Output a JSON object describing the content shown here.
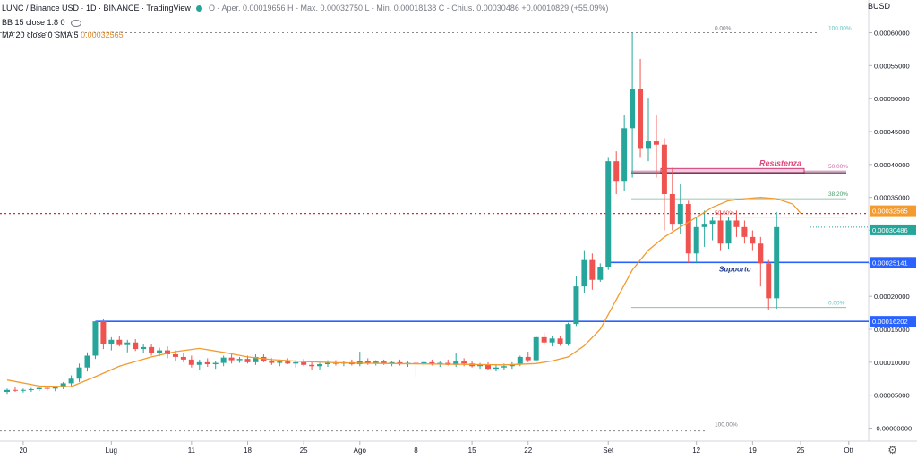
{
  "header": {
    "symbol_line": "LUNC / Binance USD · 1D · BINANCE · TradingView",
    "ohlc_line": "O - Aper. 0.00019656  H - Max. 0.00032750  L - Min. 0.00018138  C - Chius. 0.00030486  +0.00010829 (+55.09%)",
    "bb_line": "BB 15 close 1.8 0",
    "ma_label": "MA 20 close 0 SMA 5",
    "ma_value": "0.00032565"
  },
  "axis_currency": "BUSD",
  "colors": {
    "up": "#26a69a",
    "down": "#ef5350",
    "ma": "#f39b2f",
    "line_blue": "#2962ff",
    "red_dots": "#d32f2f"
  },
  "icons": {
    "settings": "gear-icon",
    "visibility": "eye-icon"
  },
  "chart_data": {
    "type": "candlestick",
    "ylim": [
      -1e-06,
      6.4e-05
    ],
    "y_ticks": [
      "0.00060000",
      "0.00055000",
      "0.00050000",
      "0.00045000",
      "0.00040000",
      "0.00035000",
      "0.00030000",
      "0.00025000",
      "0.00020000",
      "0.00015000",
      "0.00010000",
      "0.00005000",
      "-0.00000000"
    ],
    "y_tick_values": [
      0.0006,
      0.00055,
      0.0005,
      0.00045,
      0.0004,
      0.00035,
      0.0003,
      0.00025,
      0.0002,
      0.00015,
      0.0001,
      5e-05,
      0.0
    ],
    "x_ticks": [
      {
        "label": "20",
        "i": 2
      },
      {
        "label": "Lug",
        "i": 13
      },
      {
        "label": "11",
        "i": 23
      },
      {
        "label": "18",
        "i": 30
      },
      {
        "label": "25",
        "i": 37
      },
      {
        "label": "Ago",
        "i": 44
      },
      {
        "label": "8",
        "i": 51
      },
      {
        "label": "15",
        "i": 58
      },
      {
        "label": "22",
        "i": 65
      },
      {
        "label": "Set",
        "i": 75
      },
      {
        "label": "12",
        "i": 86
      },
      {
        "label": "19",
        "i": 93
      },
      {
        "label": "25",
        "i": 99
      },
      {
        "label": "Ott",
        "i": 105
      }
    ],
    "candles": [
      [
        5.5e-05,
        6e-05,
        5.2e-05,
        5.8e-05
      ],
      [
        5.8e-05,
        6.2e-05,
        5.5e-05,
        5.7e-05
      ],
      [
        5.7e-05,
        6e-05,
        5.4e-05,
        5.8e-05
      ],
      [
        5.8e-05,
        6.1e-05,
        5.5e-05,
        5.9e-05
      ],
      [
        5.9e-05,
        6.3e-05,
        5.6e-05,
        6.1e-05
      ],
      [
        6.1e-05,
        6.4e-05,
        5.7e-05,
        6e-05
      ],
      [
        6e-05,
        6.3e-05,
        5.6e-05,
        6.2e-05
      ],
      [
        6.2e-05,
        7e-05,
        5.9e-05,
        6.8e-05
      ],
      [
        6.8e-05,
        8e-05,
        6.4e-05,
        7.5e-05
      ],
      [
        7.5e-05,
        9.8e-05,
        7e-05,
        9.2e-05
      ],
      [
        9.2e-05,
        0.000115,
        8.6e-05,
        0.00011
      ],
      [
        0.00011,
        0.000162,
        0.000105,
        0.000162
      ],
      [
        0.000162,
        0.000165,
        0.00012,
        0.000128
      ],
      [
        0.000128,
        0.000138,
        0.000118,
        0.000134
      ],
      [
        0.000134,
        0.00014,
        0.000124,
        0.000126
      ],
      [
        0.000126,
        0.000134,
        0.000115,
        0.00013
      ],
      [
        0.00013,
        0.000135,
        0.000117,
        0.00012
      ],
      [
        0.00012,
        0.000128,
        0.000114,
        0.000123
      ],
      [
        0.000123,
        0.000127,
        0.00011,
        0.000114
      ],
      [
        0.000114,
        0.000122,
        0.000109,
        0.000118
      ],
      [
        0.000118,
        0.000124,
        0.000106,
        0.000112
      ],
      [
        0.000112,
        0.000118,
        0.000102,
        0.000108
      ],
      [
        0.000108,
        0.000114,
        0.0001,
        0.000104
      ],
      [
        0.000104,
        0.00011,
        9.2e-05,
        9.6e-05
      ],
      [
        9.6e-05,
        0.000104,
        8.8e-05,
        0.0001
      ],
      [
        0.0001,
        0.000106,
        9.3e-05,
        9.7e-05
      ],
      [
        9.7e-05,
        0.000102,
        9e-05,
        9.9e-05
      ],
      [
        9.9e-05,
        0.00011,
        9.4e-05,
        0.000107
      ],
      [
        0.000107,
        0.000112,
        9.8e-05,
        0.000103
      ],
      [
        0.000103,
        0.000108,
        9.9e-05,
        0.000105
      ],
      [
        0.000105,
        0.00011,
        9.8e-05,
        0.0001
      ],
      [
        0.0001,
        0.000112,
        9.6e-05,
        0.000108
      ],
      [
        0.000108,
        0.000112,
        0.0001,
        0.000102
      ],
      [
        0.000102,
        0.000106,
        9.6e-05,
        9.9e-05
      ],
      [
        9.9e-05,
        0.000104,
        9.4e-05,
        0.000101
      ],
      [
        0.000101,
        0.000106,
        9.7e-05,
        9.8e-05
      ],
      [
        9.8e-05,
        0.000103,
        9.2e-05,
        0.0001
      ],
      [
        0.0001,
        0.000105,
        9.4e-05,
        9.6e-05
      ],
      [
        9.6e-05,
        0.000102,
        8.8e-05,
        9.4e-05
      ],
      [
        9.4e-05,
        9.9e-05,
        8.9e-05,
        9.7e-05
      ],
      [
        9.7e-05,
        0.000103,
        9.3e-05,
        9.9e-05
      ],
      [
        9.9e-05,
        0.000103,
        9.5e-05,
        9.8e-05
      ],
      [
        9.8e-05,
        0.000102,
        9.4e-05,
        0.0001
      ],
      [
        0.0001,
        0.000104,
        9.5e-05,
        9.7e-05
      ],
      [
        9.7e-05,
        0.000116,
        9.4e-05,
        0.000102
      ],
      [
        0.000102,
        0.000106,
        9.6e-05,
        9.9e-05
      ],
      [
        9.9e-05,
        0.000103,
        9.5e-05,
        0.000101
      ],
      [
        0.000101,
        0.000104,
        9.6e-05,
        9.8e-05
      ],
      [
        9.8e-05,
        0.000102,
        9.4e-05,
        0.0001
      ],
      [
        0.0001,
        0.000104,
        9.5e-05,
        9.7e-05
      ],
      [
        9.7e-05,
        0.000101,
        9.3e-05,
        9.9e-05
      ],
      [
        9.9e-05,
        0.000103,
        7.8e-05,
        9.8e-05
      ],
      [
        9.8e-05,
        0.000102,
        9.4e-05,
        0.0001
      ],
      [
        0.0001,
        0.000104,
        9.5e-05,
        9.7e-05
      ],
      [
        9.7e-05,
        0.000101,
        9.3e-05,
        9.9e-05
      ],
      [
        9.9e-05,
        0.000104,
        9.5e-05,
        9.6e-05
      ],
      [
        9.6e-05,
        0.000114,
        9.3e-05,
        0.000101
      ],
      [
        0.000101,
        0.000106,
        9.4e-05,
        9.8e-05
      ],
      [
        9.8e-05,
        0.000102,
        9.2e-05,
        9.4e-05
      ],
      [
        9.4e-05,
        9.9e-05,
        9e-05,
        9.7e-05
      ],
      [
        9.7e-05,
        0.0001,
        8.8e-05,
        9e-05
      ],
      [
        9e-05,
        9.6e-05,
        8.6e-05,
        9.2e-05
      ],
      [
        9.2e-05,
        9.8e-05,
        8.8e-05,
        9.4e-05
      ],
      [
        9.4e-05,
        0.0001,
        9e-05,
        9.7e-05
      ],
      [
        9.7e-05,
        0.00011,
        9.4e-05,
        0.000108
      ],
      [
        0.000108,
        0.000116,
        0.0001,
        0.000103
      ],
      [
        0.000103,
        0.00014,
        0.0001,
        0.000138
      ],
      [
        0.000138,
        0.000145,
        0.000126,
        0.00013
      ],
      [
        0.00013,
        0.00014,
        0.000124,
        0.000136
      ],
      [
        0.000136,
        0.00014,
        0.000125,
        0.000127
      ],
      [
        0.000127,
        0.00016,
        0.000125,
        0.000158
      ],
      [
        0.000158,
        0.00023,
        0.000155,
        0.000215
      ],
      [
        0.000215,
        0.00027,
        0.000205,
        0.000255
      ],
      [
        0.000255,
        0.000265,
        0.00021,
        0.000225
      ],
      [
        0.000225,
        0.00025,
        0.000222,
        0.000245
      ],
      [
        0.000245,
        0.00041,
        0.00024,
        0.000405
      ],
      [
        0.000405,
        0.00042,
        0.000355,
        0.000375
      ],
      [
        0.000375,
        0.000475,
        0.00036,
        0.000455
      ],
      [
        0.000455,
        0.0006,
        0.00038,
        0.000515
      ],
      [
        0.000515,
        0.00056,
        0.00041,
        0.000425
      ],
      [
        0.000425,
        0.0005,
        0.000405,
        0.000435
      ],
      [
        0.000435,
        0.000475,
        0.00038,
        0.00043
      ],
      [
        0.00043,
        0.00044,
        0.0003,
        0.000355
      ],
      [
        0.000355,
        0.000395,
        0.0003,
        0.00031
      ],
      [
        0.00031,
        0.00037,
        0.000295,
        0.00034
      ],
      [
        0.00034,
        0.000345,
        0.00025,
        0.000265
      ],
      [
        0.000265,
        0.00032,
        0.00025,
        0.000305
      ],
      [
        0.000305,
        0.00033,
        0.000275,
        0.00031
      ],
      [
        0.00031,
        0.00032,
        0.000285,
        0.000315
      ],
      [
        0.000315,
        0.00033,
        0.00027,
        0.00028
      ],
      [
        0.00028,
        0.00032,
        0.000272,
        0.000315
      ],
      [
        0.000315,
        0.00033,
        0.00029,
        0.000305
      ],
      [
        0.000305,
        0.000315,
        0.00028,
        0.00029
      ],
      [
        0.00029,
        0.0003,
        0.00027,
        0.00028
      ],
      [
        0.00028,
        0.00029,
        0.000215,
        0.00025
      ],
      [
        0.00025,
        0.000255,
        0.00018,
        0.000197
      ],
      [
        0.000197,
        0.000328,
        0.000181,
        0.000305
      ]
    ],
    "ma": [
      [
        0,
        7.3e-05
      ],
      [
        4,
        6.4e-05
      ],
      [
        8,
        6.3e-05
      ],
      [
        11,
        7.8e-05
      ],
      [
        14,
        9.4e-05
      ],
      [
        18,
        0.000108
      ],
      [
        21,
        0.000116
      ],
      [
        24,
        0.000121
      ],
      [
        27,
        0.000115
      ],
      [
        30,
        0.000108
      ],
      [
        33,
        0.000104
      ],
      [
        37,
        0.000101
      ],
      [
        42,
        9.9e-05
      ],
      [
        48,
        9.8e-05
      ],
      [
        55,
        9.7e-05
      ],
      [
        62,
        9.6e-05
      ],
      [
        66,
        9.8e-05
      ],
      [
        68,
        0.000102
      ],
      [
        70,
        0.000108
      ],
      [
        72,
        0.000125
      ],
      [
        74,
        0.00015
      ],
      [
        76,
        0.000195
      ],
      [
        78,
        0.00024
      ],
      [
        80,
        0.00027
      ],
      [
        82,
        0.00029
      ],
      [
        84,
        0.000305
      ],
      [
        86,
        0.00032
      ],
      [
        88,
        0.000335
      ],
      [
        90,
        0.000345
      ],
      [
        92,
        0.000348
      ],
      [
        94,
        0.00035
      ],
      [
        96,
        0.000348
      ],
      [
        98,
        0.00034
      ],
      [
        99,
        0.000326
      ]
    ],
    "hlines": [
      {
        "name": "support",
        "value": 0.0002514,
        "label": "0.00025141",
        "color": "#2962ff",
        "start": 75
      },
      {
        "name": "low-line",
        "value": 0.00016202,
        "label": "0.00016202",
        "color": "#2962ff",
        "start": 11
      }
    ],
    "price_labels": [
      {
        "value": 0.00032565,
        "label": "0.00032565",
        "color": "#f39b2f"
      },
      {
        "value": 0.00030486,
        "label": "0.00030486",
        "color": "#26a69a"
      }
    ],
    "red_dotted": 0.00032565,
    "fib_top": {
      "value": 0.0006,
      "left_label": "0.00%",
      "right_label": "100.00%"
    },
    "fib_bottom": {
      "value": -1.5e-06,
      "label": "100.00%"
    },
    "fib_levels": [
      {
        "value": 0.00039,
        "label": "50.00%"
      },
      {
        "value": 0.000348,
        "label": "38.20%"
      },
      {
        "value": 0.00032,
        "label": "50.00%"
      },
      {
        "value": 0.000183,
        "label": "0.00%"
      }
    ],
    "resistance": {
      "low": 0.000386,
      "high": 0.000394,
      "label": "Resistenza"
    },
    "support_label": "Supporto"
  }
}
